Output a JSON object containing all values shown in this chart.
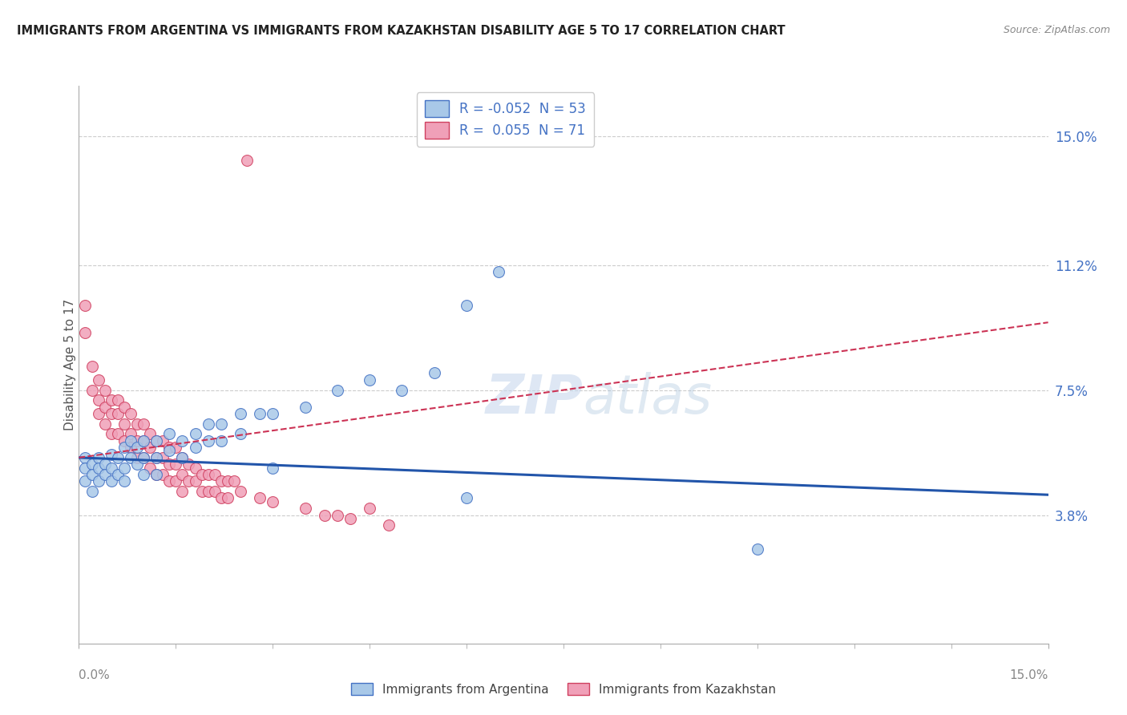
{
  "title": "IMMIGRANTS FROM ARGENTINA VS IMMIGRANTS FROM KAZAKHSTAN DISABILITY AGE 5 TO 17 CORRELATION CHART",
  "source": "Source: ZipAtlas.com",
  "ylabel": "Disability Age 5 to 17",
  "y_ticks_right": [
    "15.0%",
    "11.2%",
    "7.5%",
    "3.8%"
  ],
  "y_tick_vals": [
    0.15,
    0.112,
    0.075,
    0.038
  ],
  "xlim": [
    0.0,
    0.15
  ],
  "ylim": [
    0.0,
    0.165
  ],
  "color_argentina": "#a8c8e8",
  "color_kazakhstan": "#f0a0b8",
  "edge_argentina": "#4472c4",
  "edge_kazakhstan": "#d04060",
  "line_color_argentina": "#2255aa",
  "line_color_kazakhstan": "#cc3355",
  "watermark": "ZIPatlas",
  "bottom_label_argentina": "Immigrants from Argentina",
  "bottom_label_kazakhstan": "Immigrants from Kazakhstan",
  "legend_text_1": "R = -0.052  N = 53",
  "legend_text_2": "R =  0.055  N = 71",
  "argentina_points": [
    [
      0.001,
      0.055
    ],
    [
      0.001,
      0.052
    ],
    [
      0.001,
      0.048
    ],
    [
      0.002,
      0.053
    ],
    [
      0.002,
      0.05
    ],
    [
      0.002,
      0.045
    ],
    [
      0.003,
      0.055
    ],
    [
      0.003,
      0.052
    ],
    [
      0.003,
      0.048
    ],
    [
      0.004,
      0.053
    ],
    [
      0.004,
      0.05
    ],
    [
      0.005,
      0.056
    ],
    [
      0.005,
      0.052
    ],
    [
      0.005,
      0.048
    ],
    [
      0.006,
      0.055
    ],
    [
      0.006,
      0.05
    ],
    [
      0.007,
      0.058
    ],
    [
      0.007,
      0.052
    ],
    [
      0.007,
      0.048
    ],
    [
      0.008,
      0.06
    ],
    [
      0.008,
      0.055
    ],
    [
      0.009,
      0.058
    ],
    [
      0.009,
      0.053
    ],
    [
      0.01,
      0.06
    ],
    [
      0.01,
      0.055
    ],
    [
      0.01,
      0.05
    ],
    [
      0.012,
      0.06
    ],
    [
      0.012,
      0.055
    ],
    [
      0.012,
      0.05
    ],
    [
      0.014,
      0.062
    ],
    [
      0.014,
      0.057
    ],
    [
      0.016,
      0.06
    ],
    [
      0.016,
      0.055
    ],
    [
      0.018,
      0.062
    ],
    [
      0.018,
      0.058
    ],
    [
      0.02,
      0.065
    ],
    [
      0.02,
      0.06
    ],
    [
      0.022,
      0.065
    ],
    [
      0.022,
      0.06
    ],
    [
      0.025,
      0.068
    ],
    [
      0.025,
      0.062
    ],
    [
      0.028,
      0.068
    ],
    [
      0.03,
      0.068
    ],
    [
      0.035,
      0.07
    ],
    [
      0.04,
      0.075
    ],
    [
      0.045,
      0.078
    ],
    [
      0.05,
      0.075
    ],
    [
      0.055,
      0.08
    ],
    [
      0.06,
      0.1
    ],
    [
      0.065,
      0.11
    ],
    [
      0.03,
      0.052
    ],
    [
      0.06,
      0.043
    ],
    [
      0.105,
      0.028
    ]
  ],
  "kazakhstan_points": [
    [
      0.001,
      0.1
    ],
    [
      0.001,
      0.092
    ],
    [
      0.002,
      0.082
    ],
    [
      0.002,
      0.075
    ],
    [
      0.003,
      0.078
    ],
    [
      0.003,
      0.072
    ],
    [
      0.003,
      0.068
    ],
    [
      0.004,
      0.075
    ],
    [
      0.004,
      0.07
    ],
    [
      0.004,
      0.065
    ],
    [
      0.005,
      0.072
    ],
    [
      0.005,
      0.068
    ],
    [
      0.005,
      0.062
    ],
    [
      0.006,
      0.072
    ],
    [
      0.006,
      0.068
    ],
    [
      0.006,
      0.062
    ],
    [
      0.007,
      0.07
    ],
    [
      0.007,
      0.065
    ],
    [
      0.007,
      0.06
    ],
    [
      0.008,
      0.068
    ],
    [
      0.008,
      0.062
    ],
    [
      0.008,
      0.058
    ],
    [
      0.009,
      0.065
    ],
    [
      0.009,
      0.06
    ],
    [
      0.009,
      0.055
    ],
    [
      0.01,
      0.065
    ],
    [
      0.01,
      0.06
    ],
    [
      0.01,
      0.055
    ],
    [
      0.011,
      0.062
    ],
    [
      0.011,
      0.058
    ],
    [
      0.011,
      0.052
    ],
    [
      0.012,
      0.06
    ],
    [
      0.012,
      0.055
    ],
    [
      0.012,
      0.05
    ],
    [
      0.013,
      0.06
    ],
    [
      0.013,
      0.055
    ],
    [
      0.013,
      0.05
    ],
    [
      0.014,
      0.058
    ],
    [
      0.014,
      0.053
    ],
    [
      0.014,
      0.048
    ],
    [
      0.015,
      0.058
    ],
    [
      0.015,
      0.053
    ],
    [
      0.015,
      0.048
    ],
    [
      0.016,
      0.055
    ],
    [
      0.016,
      0.05
    ],
    [
      0.016,
      0.045
    ],
    [
      0.017,
      0.053
    ],
    [
      0.017,
      0.048
    ],
    [
      0.018,
      0.052
    ],
    [
      0.018,
      0.048
    ],
    [
      0.019,
      0.05
    ],
    [
      0.019,
      0.045
    ],
    [
      0.02,
      0.05
    ],
    [
      0.02,
      0.045
    ],
    [
      0.021,
      0.05
    ],
    [
      0.021,
      0.045
    ],
    [
      0.022,
      0.048
    ],
    [
      0.022,
      0.043
    ],
    [
      0.023,
      0.048
    ],
    [
      0.023,
      0.043
    ],
    [
      0.024,
      0.048
    ],
    [
      0.025,
      0.045
    ],
    [
      0.026,
      0.143
    ],
    [
      0.028,
      0.043
    ],
    [
      0.03,
      0.042
    ],
    [
      0.035,
      0.04
    ],
    [
      0.038,
      0.038
    ],
    [
      0.04,
      0.038
    ],
    [
      0.042,
      0.037
    ],
    [
      0.045,
      0.04
    ],
    [
      0.048,
      0.035
    ]
  ],
  "argentina_R": -0.052,
  "kazakhstan_R": 0.055,
  "argentina_N": 53,
  "kazakhstan_N": 71
}
